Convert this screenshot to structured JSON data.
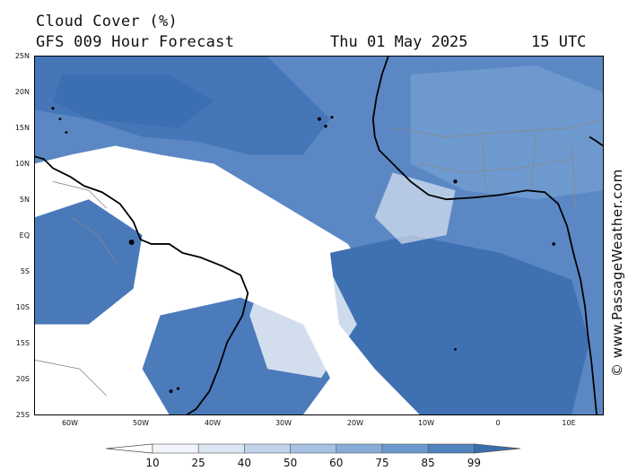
{
  "header": {
    "title": "Cloud Cover (%)",
    "subtitle": "GFS 009 Hour Forecast",
    "date": "Thu 01 May 2025",
    "time": "15 UTC"
  },
  "credit": "© www.PassageWeather.com",
  "lat_labels": [
    "25N",
    "20N",
    "15N",
    "10N",
    "5N",
    "EQ",
    "5S",
    "10S",
    "15S",
    "20S",
    "25S"
  ],
  "lon_labels": [
    "60W",
    "50W",
    "40W",
    "30W",
    "20W",
    "10W",
    "0",
    "10E"
  ],
  "colorbar": {
    "levels": [
      "10",
      "25",
      "40",
      "50",
      "60",
      "75",
      "85",
      "99"
    ],
    "colors": [
      "#ffffff",
      "#f1f5fb",
      "#dbe6f3",
      "#c1d4ec",
      "#a5c1e3",
      "#86acd8",
      "#6b98cd",
      "#4f82bf",
      "#3a6db0"
    ]
  },
  "map_colors": {
    "cloud_dense": "#3d6eaf",
    "cloud_mid": "#6f9ace",
    "cloud_light": "#b6cde9",
    "clear": "#ffffff",
    "land_border": "#888888",
    "coast": "#000000"
  }
}
